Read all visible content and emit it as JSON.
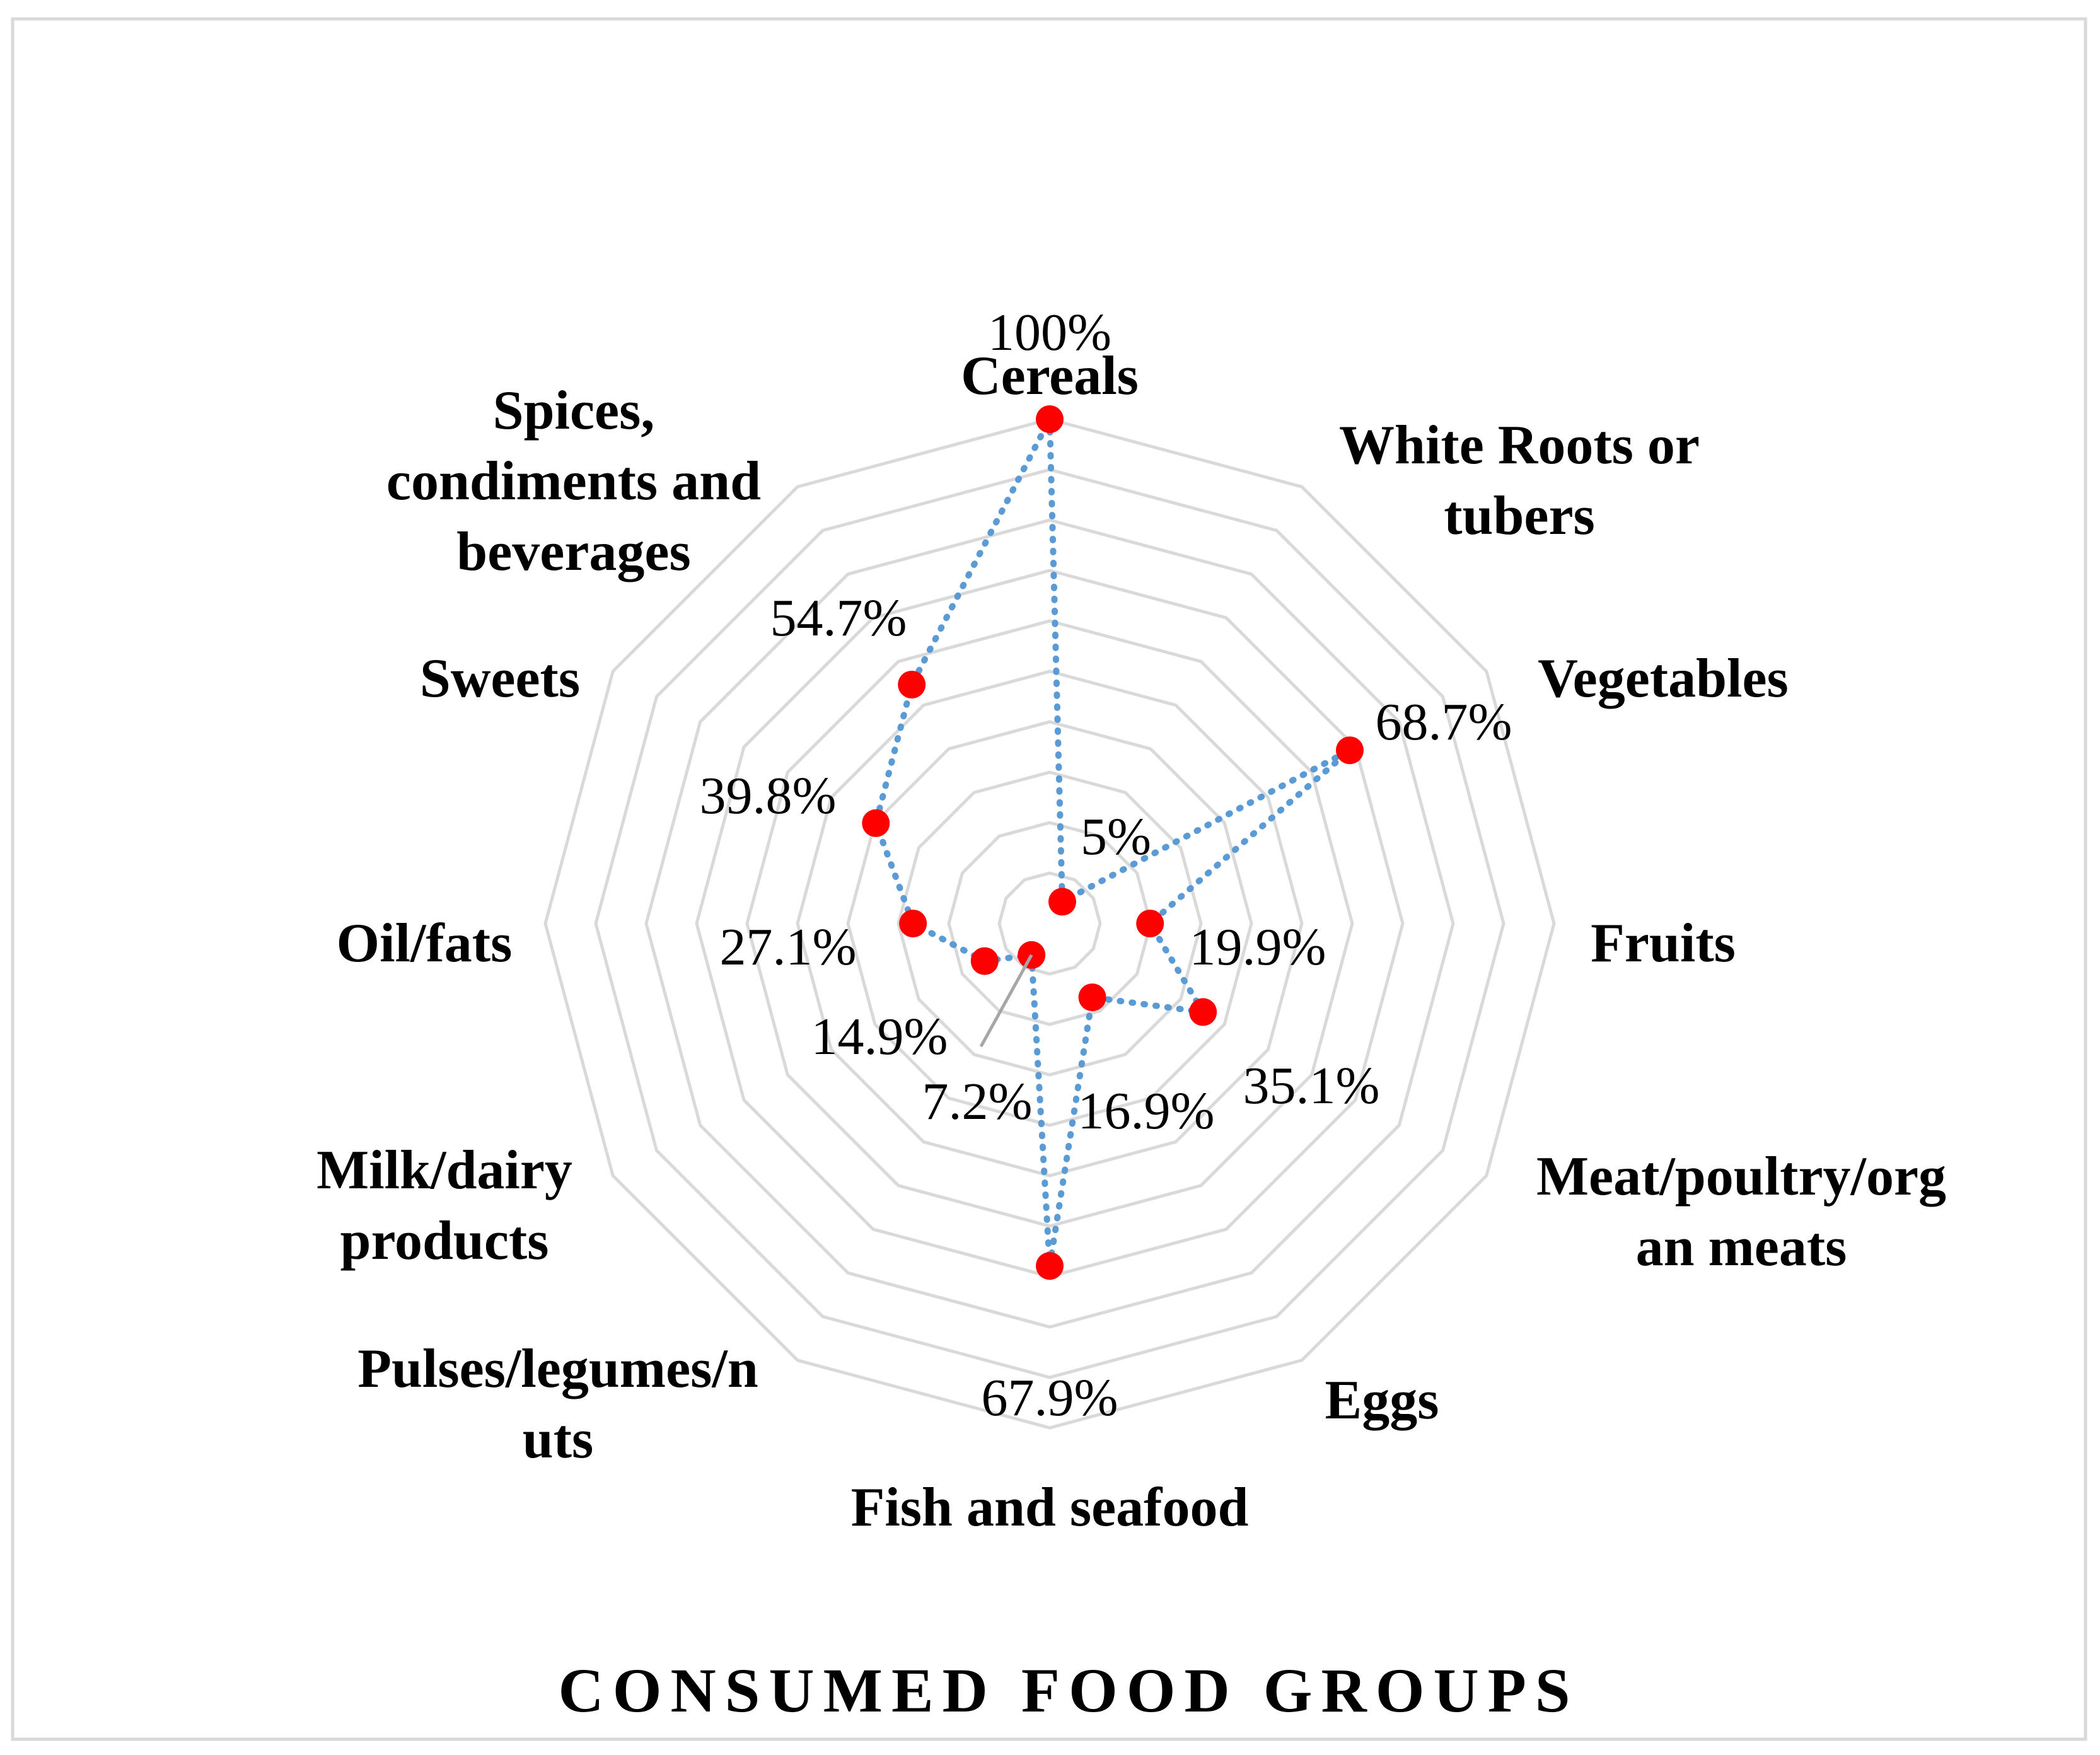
{
  "chart_data": {
    "type": "radar",
    "title": "CONSUMED FOOD GROUPS",
    "categories": [
      "Cereals",
      "White Roots or tubers",
      "Vegetables",
      "Fruits",
      "Meat/poultry/organ meats",
      "Eggs",
      "Fish and seafood",
      "Pulses/legumes/nuts",
      "Milk/dairy products",
      "Oil/fats",
      "Sweets",
      "Spices, condiments and beverages"
    ],
    "category_label_lines": [
      [
        "Cereals"
      ],
      [
        "White Roots or",
        "tubers"
      ],
      [
        "Vegetables"
      ],
      [
        "Fruits"
      ],
      [
        "Meat/poultry/org",
        "an meats"
      ],
      [
        "Eggs"
      ],
      [
        "Fish and seafood"
      ],
      [
        "Pulses/legumes/n",
        "uts"
      ],
      [
        "Milk/dairy",
        "products"
      ],
      [
        "Oil/fats"
      ],
      [
        "Sweets"
      ],
      [
        "Spices,",
        "condiments and",
        "beverages"
      ]
    ],
    "series": [
      {
        "name": "Consumed food groups",
        "values": [
          100,
          5,
          68.7,
          19.9,
          35.1,
          16.9,
          67.9,
          7.2,
          14.9,
          27.1,
          39.8,
          54.7
        ]
      }
    ],
    "value_labels": [
      "100%",
      "5%",
      "68.7%",
      "19.9%",
      "35.1%",
      "16.9%",
      "67.9%",
      "7.2%",
      "14.9%",
      "27.1%",
      "39.8%",
      "54.7%"
    ],
    "rlim": [
      0,
      100
    ],
    "grid_rings": 10,
    "grid": true,
    "colors": {
      "marker": "#ff0000",
      "line": "#5b9bd5",
      "grid": "#d9d9d9",
      "leader": "#a6a6a6",
      "frame": "#d9d9d9"
    }
  }
}
